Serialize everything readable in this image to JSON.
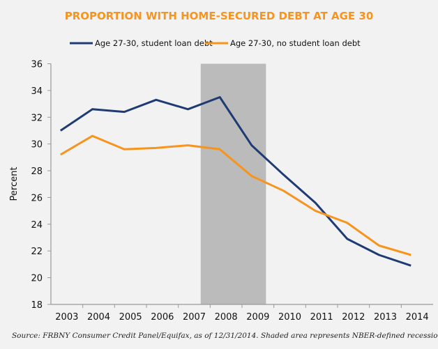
{
  "chart_data": {
    "type": "line",
    "title": "PROPORTION WITH HOME-SECURED DEBT AT AGE 30",
    "ylabel": "Percent",
    "xlabel": "",
    "ylim": [
      18,
      36
    ],
    "yticks": [
      18,
      20,
      22,
      24,
      26,
      28,
      30,
      32,
      34,
      36
    ],
    "categories": [
      "2003",
      "2004",
      "2005",
      "2006",
      "2007",
      "2008",
      "2009",
      "2010",
      "2011",
      "2012",
      "2013",
      "2014"
    ],
    "legend_position": "top",
    "grid": false,
    "series": [
      {
        "name": "Age 27-30, student loan debt",
        "color": "#1f3b73",
        "values": [
          31.0,
          32.6,
          32.4,
          33.3,
          32.6,
          33.5,
          29.9,
          27.7,
          25.6,
          22.9,
          21.7,
          20.9
        ]
      },
      {
        "name": "Age 27-30, no student loan debt",
        "color": "#f7941d",
        "values": [
          29.2,
          30.6,
          29.6,
          29.7,
          29.9,
          29.6,
          27.6,
          26.5,
          25.0,
          24.1,
          22.4,
          21.7
        ]
      }
    ],
    "recession_shading": {
      "start": 2007.4,
      "end": 2009.45,
      "color": "#bcbbbb"
    },
    "title_color": "#f7941d",
    "source": "Source: FRBNY Consumer Credit Panel/Equifax, as of 12/31/2014. Shaded area represents NBER-defined recessions."
  }
}
